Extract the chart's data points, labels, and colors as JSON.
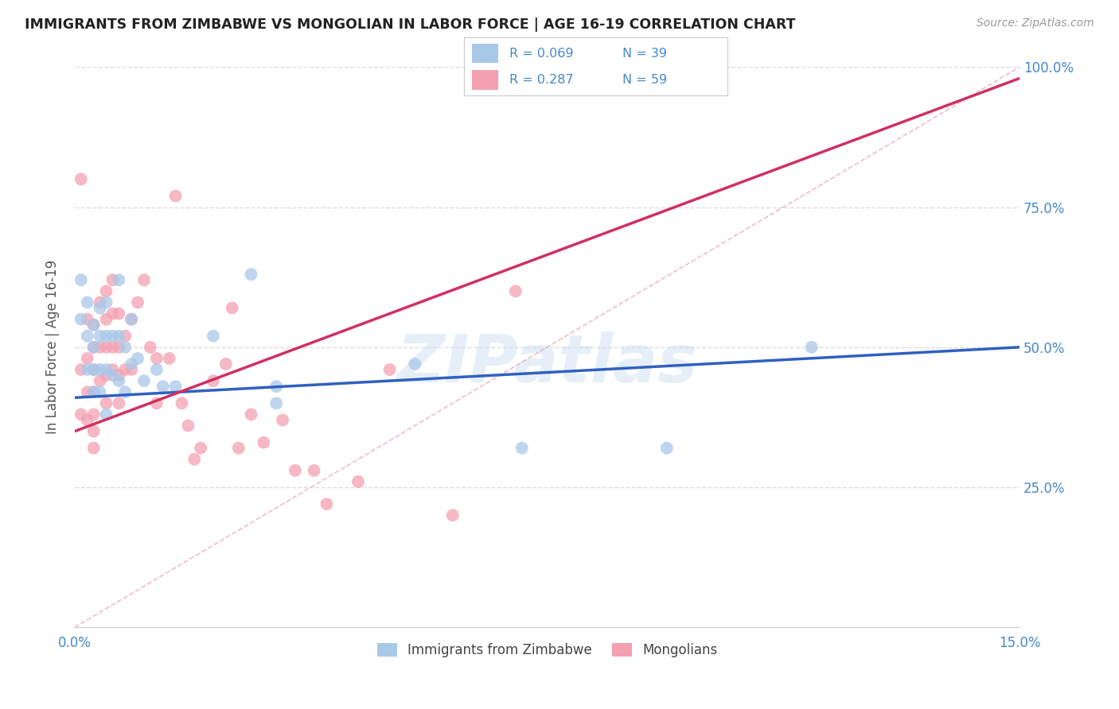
{
  "title": "IMMIGRANTS FROM ZIMBABWE VS MONGOLIAN IN LABOR FORCE | AGE 16-19 CORRELATION CHART",
  "source": "Source: ZipAtlas.com",
  "ylabel": "In Labor Force | Age 16-19",
  "xlim": [
    0.0,
    0.15
  ],
  "ylim": [
    0.0,
    1.0
  ],
  "xticks": [
    0.0,
    0.03,
    0.06,
    0.09,
    0.12,
    0.15
  ],
  "xticklabels": [
    "0.0%",
    "",
    "",
    "",
    "",
    "15.0%"
  ],
  "yticks": [
    0.0,
    0.25,
    0.5,
    0.75,
    1.0
  ],
  "yticklabels": [
    "",
    "25.0%",
    "50.0%",
    "75.0%",
    "100.0%"
  ],
  "legend_labels": [
    "Immigrants from Zimbabwe",
    "Mongolians"
  ],
  "blue_color": "#a8c8e8",
  "pink_color": "#f4a0b0",
  "blue_line_color": "#3060c0",
  "pink_line_color": "#d03060",
  "axis_color": "#4488cc",
  "watermark": "ZIPatlas",
  "zimbabwe_x": [
    0.001,
    0.001,
    0.002,
    0.002,
    0.002,
    0.003,
    0.003,
    0.003,
    0.003,
    0.004,
    0.004,
    0.004,
    0.004,
    0.005,
    0.005,
    0.005,
    0.005,
    0.006,
    0.006,
    0.007,
    0.007,
    0.007,
    0.008,
    0.008,
    0.009,
    0.009,
    0.01,
    0.011,
    0.013,
    0.014,
    0.016,
    0.022,
    0.028,
    0.032,
    0.032,
    0.054,
    0.071,
    0.094,
    0.117
  ],
  "zimbabwe_y": [
    0.62,
    0.55,
    0.58,
    0.52,
    0.46,
    0.54,
    0.5,
    0.46,
    0.42,
    0.57,
    0.52,
    0.46,
    0.42,
    0.58,
    0.52,
    0.46,
    0.38,
    0.52,
    0.45,
    0.62,
    0.52,
    0.44,
    0.5,
    0.42,
    0.55,
    0.47,
    0.48,
    0.44,
    0.46,
    0.43,
    0.43,
    0.52,
    0.63,
    0.43,
    0.4,
    0.47,
    0.32,
    0.32,
    0.5
  ],
  "mongolian_x": [
    0.001,
    0.001,
    0.001,
    0.002,
    0.002,
    0.002,
    0.002,
    0.003,
    0.003,
    0.003,
    0.003,
    0.003,
    0.003,
    0.003,
    0.004,
    0.004,
    0.004,
    0.005,
    0.005,
    0.005,
    0.005,
    0.005,
    0.006,
    0.006,
    0.006,
    0.006,
    0.007,
    0.007,
    0.007,
    0.007,
    0.008,
    0.008,
    0.009,
    0.009,
    0.01,
    0.011,
    0.012,
    0.013,
    0.013,
    0.015,
    0.016,
    0.017,
    0.018,
    0.019,
    0.02,
    0.022,
    0.024,
    0.025,
    0.026,
    0.028,
    0.03,
    0.033,
    0.035,
    0.038,
    0.04,
    0.045,
    0.05,
    0.06,
    0.07
  ],
  "mongolian_y": [
    0.8,
    0.46,
    0.38,
    0.55,
    0.48,
    0.42,
    0.37,
    0.54,
    0.5,
    0.46,
    0.42,
    0.38,
    0.35,
    0.32,
    0.58,
    0.5,
    0.44,
    0.6,
    0.55,
    0.5,
    0.45,
    0.4,
    0.62,
    0.56,
    0.5,
    0.46,
    0.56,
    0.5,
    0.45,
    0.4,
    0.52,
    0.46,
    0.55,
    0.46,
    0.58,
    0.62,
    0.5,
    0.48,
    0.4,
    0.48,
    0.77,
    0.4,
    0.36,
    0.3,
    0.32,
    0.44,
    0.47,
    0.57,
    0.32,
    0.38,
    0.33,
    0.37,
    0.28,
    0.28,
    0.22,
    0.26,
    0.46,
    0.2,
    0.6
  ],
  "grid_color": "#dddddd",
  "background_color": "#ffffff",
  "blue_line_intercept": 0.41,
  "blue_line_slope": 0.6,
  "pink_line_intercept": 0.35,
  "pink_line_slope": 4.2
}
